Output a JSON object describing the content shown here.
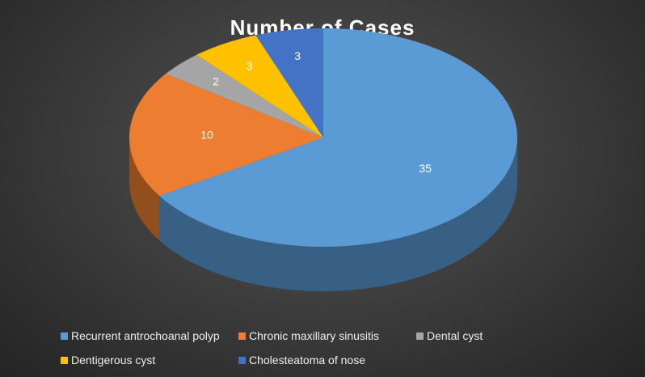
{
  "chart_data": {
    "type": "pie",
    "title": "Number of Cases",
    "categories": [
      "Recurrent antrochoanal polyp",
      "Chronic maxillary sinusitis",
      "Dental cyst",
      "Dentigerous cyst",
      "Cholesteatoma of nose"
    ],
    "values": [
      35,
      10,
      2,
      3,
      3
    ],
    "colors": [
      "#5b9bd5",
      "#ed7d31",
      "#a5a5a5",
      "#ffc000",
      "#4472c4"
    ],
    "legend": "bottom"
  }
}
